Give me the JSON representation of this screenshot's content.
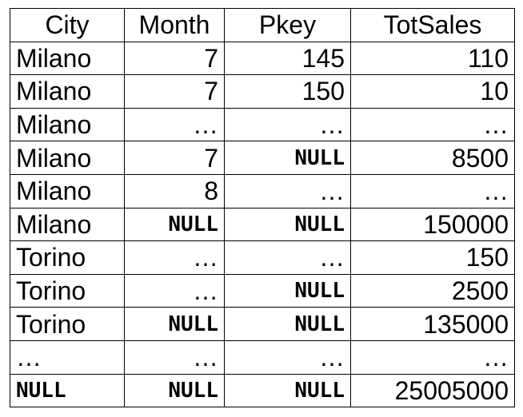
{
  "table": {
    "columns": [
      "City",
      "Month",
      "Pkey",
      "TotSales"
    ],
    "rows": [
      [
        "Milano",
        "7",
        "145",
        "110"
      ],
      [
        "Milano",
        "7",
        "150",
        "10"
      ],
      [
        "Milano",
        "…",
        "…",
        "…"
      ],
      [
        "Milano",
        "7",
        "NULL",
        "8500"
      ],
      [
        "Milano",
        "8",
        "…",
        "…"
      ],
      [
        "Milano",
        "NULL",
        "NULL",
        "150000"
      ],
      [
        "Torino",
        "…",
        "…",
        "150"
      ],
      [
        "Torino",
        "…",
        "NULL",
        "2500"
      ],
      [
        "Torino",
        "NULL",
        "NULL",
        "135000"
      ],
      [
        "…",
        "…",
        "…",
        "…"
      ],
      [
        "NULL",
        "NULL",
        "NULL",
        "25005000"
      ]
    ]
  }
}
